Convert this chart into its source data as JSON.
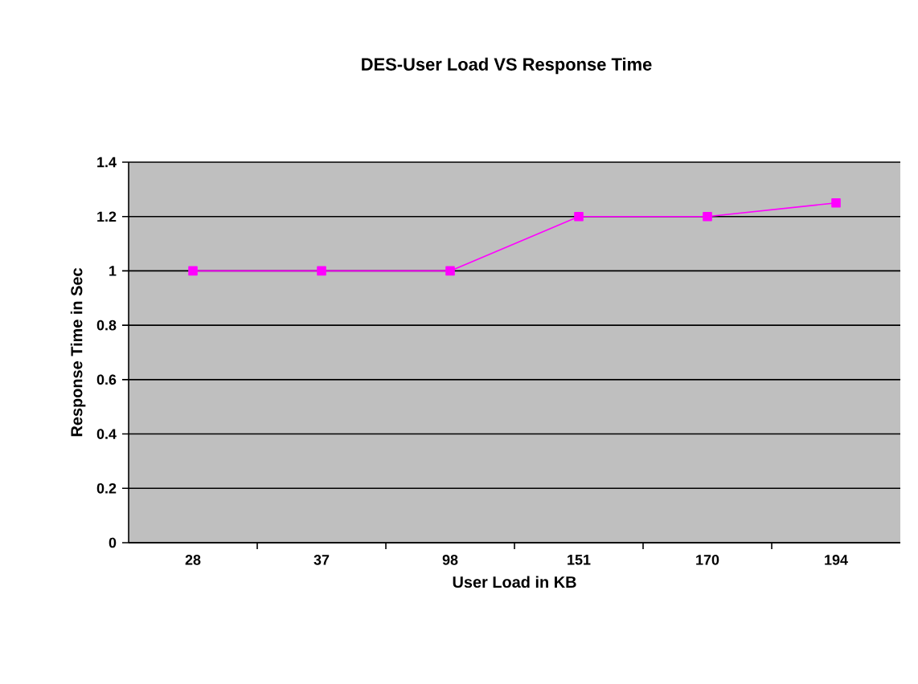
{
  "chart_data": {
    "type": "line",
    "title": "DES-User Load VS Response Time",
    "xlabel": "User Load in KB",
    "ylabel": "Response Time in Sec",
    "categories": [
      "28",
      "37",
      "98",
      "151",
      "170",
      "194"
    ],
    "values": [
      1,
      1,
      1,
      1.2,
      1.2,
      1.25
    ],
    "color": "#ff00ff",
    "ylim": [
      0,
      1.4
    ],
    "yticks": [
      0,
      0.2,
      0.4,
      0.6,
      0.8,
      1,
      1.2,
      1.4
    ],
    "grid": "y",
    "marker": "square",
    "line_style": "solid"
  }
}
